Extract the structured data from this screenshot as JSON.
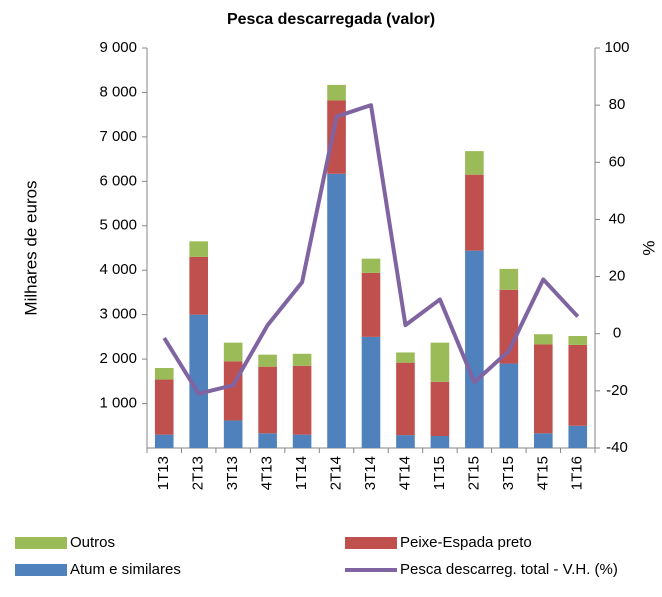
{
  "chart_data": {
    "type": "bar",
    "title": "Pesca descarregada (valor)",
    "ylabel": "Milhares de euros",
    "y2label": "%",
    "categories": [
      "1T13",
      "2T13",
      "3T13",
      "4T13",
      "1T14",
      "2T14",
      "3T14",
      "4T14",
      "1T15",
      "2T15",
      "3T15",
      "4T15",
      "1T16"
    ],
    "series": [
      {
        "name": "Outros",
        "type": "bar",
        "color": "#9bbb59",
        "values": [
          260,
          350,
          420,
          270,
          270,
          350,
          320,
          230,
          880,
          530,
          470,
          230,
          200
        ]
      },
      {
        "name": "Peixe-Espada preto",
        "type": "bar",
        "color": "#c0504d",
        "values": [
          1240,
          1300,
          1330,
          1500,
          1550,
          1650,
          1440,
          1630,
          1220,
          1710,
          1660,
          2000,
          1820
        ]
      },
      {
        "name": "Atum e similares",
        "type": "bar",
        "color": "#4f81bd",
        "values": [
          300,
          3000,
          620,
          330,
          300,
          6170,
          2500,
          290,
          270,
          4440,
          1900,
          330,
          500
        ]
      },
      {
        "name": "Pesca descarreg. total - V.H. (%)",
        "type": "line",
        "axis": "y2",
        "color": "#8064a2",
        "values": [
          -1.5,
          -21,
          -18,
          3,
          18,
          76,
          80,
          3,
          12,
          -17,
          -6,
          19,
          6
        ]
      }
    ],
    "ylim": [
      0,
      9000
    ],
    "yticks": [
      {
        "value": 1000,
        "label": "1 000"
      },
      {
        "value": 2000,
        "label": "2 000"
      },
      {
        "value": 3000,
        "label": "3 000"
      },
      {
        "value": 4000,
        "label": "4 000"
      },
      {
        "value": 5000,
        "label": "5 000"
      },
      {
        "value": 6000,
        "label": "6 000"
      },
      {
        "value": 7000,
        "label": "7 000"
      },
      {
        "value": 8000,
        "label": "8 000"
      },
      {
        "value": 9000,
        "label": "9 000"
      }
    ],
    "y2lim": [
      -40,
      100
    ],
    "y2ticks": [
      -40,
      -20,
      0,
      20,
      40,
      60,
      80,
      100
    ],
    "legend": "bottom"
  }
}
